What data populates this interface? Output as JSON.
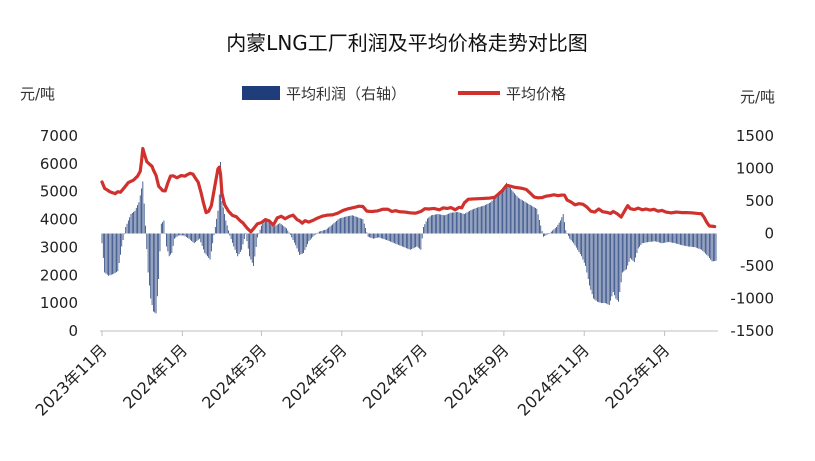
{
  "chart_data": {
    "type": "bar+line",
    "title": "内蒙LNG工厂利润及平均价格走势对比图",
    "y_left_unit": "元/吨",
    "y_right_unit": "元/吨",
    "y_left": {
      "min": 0,
      "max": 7000,
      "ticks": [
        0,
        1000,
        2000,
        3000,
        4000,
        5000,
        6000,
        7000
      ]
    },
    "y_right": {
      "min": -1500,
      "max": 1500,
      "ticks": [
        -1500,
        -1000,
        -500,
        0,
        500,
        1000,
        1500
      ]
    },
    "x_ticks": [
      "2023年11月",
      "2024年1月",
      "2024年3月",
      "2024年5月",
      "2024年7月",
      "2024年9月",
      "2024年11月",
      "2025年1月"
    ],
    "x_tick_index": [
      0,
      61,
      121,
      182,
      243,
      305,
      366,
      427
    ],
    "legend_position": "top-center",
    "colors": {
      "bar": "#1f3d7a",
      "line": "#d0312d"
    },
    "series": [
      {
        "name": "平均利润（右轴）",
        "kind": "bar",
        "axis": "right",
        "keyframes": [
          [
            0,
            -150
          ],
          [
            2,
            -600
          ],
          [
            5,
            -650
          ],
          [
            9,
            -620
          ],
          [
            12,
            -580
          ],
          [
            15,
            -200
          ],
          [
            18,
            100
          ],
          [
            22,
            300
          ],
          [
            25,
            350
          ],
          [
            28,
            480
          ],
          [
            31,
            800
          ],
          [
            33,
            120
          ],
          [
            35,
            -600
          ],
          [
            37,
            -1000
          ],
          [
            39,
            -1200
          ],
          [
            41,
            -1230
          ],
          [
            43,
            -700
          ],
          [
            45,
            150
          ],
          [
            47,
            200
          ],
          [
            49,
            -200
          ],
          [
            51,
            -350
          ],
          [
            53,
            -300
          ],
          [
            55,
            -80
          ],
          [
            58,
            -30
          ],
          [
            62,
            -30
          ],
          [
            66,
            -80
          ],
          [
            70,
            -150
          ],
          [
            74,
            -80
          ],
          [
            78,
            -300
          ],
          [
            82,
            -400
          ],
          [
            86,
            100
          ],
          [
            88,
            350
          ],
          [
            89,
            600
          ],
          [
            90,
            1100
          ],
          [
            91,
            500
          ],
          [
            94,
            200
          ],
          [
            97,
            -30
          ],
          [
            100,
            -200
          ],
          [
            103,
            -350
          ],
          [
            106,
            -250
          ],
          [
            109,
            0
          ],
          [
            112,
            -350
          ],
          [
            115,
            -500
          ],
          [
            118,
            -60
          ],
          [
            121,
            120
          ],
          [
            124,
            200
          ],
          [
            127,
            160
          ],
          [
            130,
            100
          ],
          [
            135,
            160
          ],
          [
            140,
            80
          ],
          [
            143,
            -20
          ],
          [
            147,
            -180
          ],
          [
            150,
            -330
          ],
          [
            153,
            -300
          ],
          [
            157,
            -120
          ],
          [
            161,
            -30
          ],
          [
            165,
            30
          ],
          [
            170,
            60
          ],
          [
            175,
            140
          ],
          [
            180,
            230
          ],
          [
            185,
            260
          ],
          [
            190,
            280
          ],
          [
            194,
            250
          ],
          [
            198,
            220
          ],
          [
            202,
            -50
          ],
          [
            206,
            -80
          ],
          [
            210,
            -60
          ],
          [
            216,
            -100
          ],
          [
            222,
            -150
          ],
          [
            228,
            -200
          ],
          [
            234,
            -250
          ],
          [
            239,
            -200
          ],
          [
            242,
            -250
          ],
          [
            244,
            100
          ],
          [
            247,
            230
          ],
          [
            250,
            280
          ],
          [
            255,
            300
          ],
          [
            260,
            280
          ],
          [
            265,
            320
          ],
          [
            270,
            330
          ],
          [
            275,
            300
          ],
          [
            280,
            360
          ],
          [
            285,
            400
          ],
          [
            290,
            430
          ],
          [
            295,
            480
          ],
          [
            300,
            600
          ],
          [
            304,
            650
          ],
          [
            307,
            780
          ],
          [
            310,
            700
          ],
          [
            313,
            620
          ],
          [
            316,
            550
          ],
          [
            320,
            500
          ],
          [
            325,
            440
          ],
          [
            330,
            380
          ],
          [
            335,
            -50
          ],
          [
            340,
            10
          ],
          [
            345,
            100
          ],
          [
            348,
            200
          ],
          [
            350,
            300
          ],
          [
            352,
            50
          ],
          [
            355,
            -80
          ],
          [
            358,
            -150
          ],
          [
            361,
            -250
          ],
          [
            364,
            -350
          ],
          [
            367,
            -500
          ],
          [
            370,
            -800
          ],
          [
            373,
            -1000
          ],
          [
            376,
            -1050
          ],
          [
            379,
            -1070
          ],
          [
            382,
            -1070
          ],
          [
            385,
            -1100
          ],
          [
            388,
            -900
          ],
          [
            390,
            -1000
          ],
          [
            392,
            -1050
          ],
          [
            395,
            -600
          ],
          [
            398,
            -550
          ],
          [
            401,
            -380
          ],
          [
            404,
            -440
          ],
          [
            407,
            -230
          ],
          [
            410,
            -150
          ],
          [
            415,
            -130
          ],
          [
            420,
            -120
          ],
          [
            425,
            -150
          ],
          [
            430,
            -130
          ],
          [
            435,
            -150
          ],
          [
            440,
            -180
          ],
          [
            445,
            -200
          ],
          [
            450,
            -210
          ],
          [
            455,
            -250
          ],
          [
            460,
            -350
          ],
          [
            463,
            -430
          ],
          [
            466,
            -420
          ]
        ]
      },
      {
        "name": "平均价格",
        "kind": "line",
        "axis": "left",
        "keyframes": [
          [
            0,
            5350
          ],
          [
            2,
            5120
          ],
          [
            6,
            5000
          ],
          [
            10,
            4930
          ],
          [
            12,
            5000
          ],
          [
            14,
            4980
          ],
          [
            17,
            5150
          ],
          [
            20,
            5330
          ],
          [
            24,
            5420
          ],
          [
            27,
            5560
          ],
          [
            29,
            5730
          ],
          [
            30,
            6100
          ],
          [
            31,
            6550
          ],
          [
            32,
            6380
          ],
          [
            34,
            6080
          ],
          [
            36,
            5990
          ],
          [
            38,
            5910
          ],
          [
            39,
            5780
          ],
          [
            41,
            5590
          ],
          [
            43,
            5200
          ],
          [
            46,
            5040
          ],
          [
            48,
            5030
          ],
          [
            50,
            5320
          ],
          [
            52,
            5560
          ],
          [
            54,
            5570
          ],
          [
            57,
            5500
          ],
          [
            60,
            5580
          ],
          [
            63,
            5560
          ],
          [
            65,
            5620
          ],
          [
            67,
            5660
          ],
          [
            69,
            5630
          ],
          [
            71,
            5480
          ],
          [
            73,
            5340
          ],
          [
            75,
            5000
          ],
          [
            77,
            4600
          ],
          [
            79,
            4250
          ],
          [
            81,
            4300
          ],
          [
            83,
            4500
          ],
          [
            86,
            5300
          ],
          [
            88,
            5820
          ],
          [
            89,
            5880
          ],
          [
            90,
            5620
          ],
          [
            91,
            4950
          ],
          [
            93,
            4540
          ],
          [
            96,
            4300
          ],
          [
            99,
            4150
          ],
          [
            102,
            4100
          ],
          [
            105,
            3950
          ],
          [
            107,
            3880
          ],
          [
            110,
            3700
          ],
          [
            113,
            3560
          ],
          [
            116,
            3730
          ],
          [
            118,
            3850
          ],
          [
            121,
            3890
          ],
          [
            124,
            4000
          ],
          [
            127,
            3950
          ],
          [
            130,
            3800
          ],
          [
            133,
            4060
          ],
          [
            136,
            4120
          ],
          [
            139,
            4030
          ],
          [
            142,
            4110
          ],
          [
            145,
            4160
          ],
          [
            148,
            4000
          ],
          [
            150,
            3950
          ],
          [
            152,
            3870
          ],
          [
            154,
            3960
          ],
          [
            157,
            3910
          ],
          [
            160,
            3970
          ],
          [
            163,
            4040
          ],
          [
            167,
            4120
          ],
          [
            171,
            4160
          ],
          [
            175,
            4170
          ],
          [
            179,
            4230
          ],
          [
            183,
            4330
          ],
          [
            187,
            4390
          ],
          [
            191,
            4430
          ],
          [
            195,
            4480
          ],
          [
            198,
            4470
          ],
          [
            201,
            4300
          ],
          [
            205,
            4290
          ],
          [
            209,
            4310
          ],
          [
            213,
            4370
          ],
          [
            217,
            4370
          ],
          [
            220,
            4290
          ],
          [
            223,
            4320
          ],
          [
            226,
            4280
          ],
          [
            230,
            4270
          ],
          [
            234,
            4240
          ],
          [
            238,
            4230
          ],
          [
            242,
            4290
          ],
          [
            245,
            4390
          ],
          [
            248,
            4380
          ],
          [
            252,
            4400
          ],
          [
            256,
            4350
          ],
          [
            259,
            4420
          ],
          [
            262,
            4400
          ],
          [
            265,
            4430
          ],
          [
            268,
            4350
          ],
          [
            271,
            4440
          ],
          [
            273,
            4420
          ],
          [
            275,
            4600
          ],
          [
            278,
            4730
          ],
          [
            282,
            4740
          ],
          [
            286,
            4750
          ],
          [
            290,
            4760
          ],
          [
            294,
            4770
          ],
          [
            298,
            4800
          ],
          [
            301,
            4920
          ],
          [
            304,
            5050
          ],
          [
            307,
            5230
          ],
          [
            310,
            5200
          ],
          [
            313,
            5160
          ],
          [
            316,
            5140
          ],
          [
            319,
            5120
          ],
          [
            322,
            5080
          ],
          [
            325,
            4950
          ],
          [
            328,
            4810
          ],
          [
            331,
            4780
          ],
          [
            334,
            4790
          ],
          [
            337,
            4840
          ],
          [
            340,
            4860
          ],
          [
            343,
            4890
          ],
          [
            346,
            4860
          ],
          [
            349,
            4880
          ],
          [
            351,
            4880
          ],
          [
            353,
            4700
          ],
          [
            356,
            4630
          ],
          [
            359,
            4530
          ],
          [
            362,
            4570
          ],
          [
            365,
            4550
          ],
          [
            368,
            4450
          ],
          [
            371,
            4300
          ],
          [
            374,
            4270
          ],
          [
            377,
            4380
          ],
          [
            380,
            4280
          ],
          [
            383,
            4260
          ],
          [
            386,
            4220
          ],
          [
            388,
            4290
          ],
          [
            391,
            4210
          ],
          [
            394,
            4090
          ],
          [
            397,
            4340
          ],
          [
            399,
            4500
          ],
          [
            401,
            4390
          ],
          [
            404,
            4360
          ],
          [
            407,
            4410
          ],
          [
            410,
            4350
          ],
          [
            413,
            4380
          ],
          [
            416,
            4340
          ],
          [
            419,
            4370
          ],
          [
            422,
            4300
          ],
          [
            425,
            4330
          ],
          [
            428,
            4270
          ],
          [
            432,
            4240
          ],
          [
            436,
            4270
          ],
          [
            440,
            4250
          ],
          [
            444,
            4250
          ],
          [
            448,
            4240
          ],
          [
            452,
            4220
          ],
          [
            455,
            4210
          ],
          [
            457,
            4080
          ],
          [
            459,
            3900
          ],
          [
            461,
            3770
          ],
          [
            463,
            3760
          ],
          [
            465,
            3750
          ]
        ]
      }
    ]
  }
}
